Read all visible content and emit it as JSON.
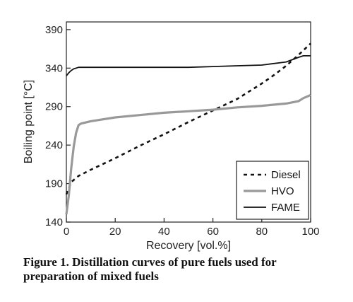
{
  "caption": "Figure 1. Distillation curves of pure fuels used for preparation of mixed fuels",
  "chart_data": {
    "type": "line",
    "title": "",
    "xlabel": "Recovery [vol.%]",
    "ylabel": "Boiling point [°C]",
    "xlim": [
      0,
      100
    ],
    "ylim": [
      140,
      400
    ],
    "xticks": [
      0,
      20,
      40,
      60,
      80,
      100
    ],
    "yticks": [
      140,
      190,
      240,
      290,
      340,
      390
    ],
    "grid": false,
    "legend": "bottom-right",
    "series": [
      {
        "name": "Diesel",
        "style": "dashed",
        "color": "#111111",
        "x": [
          0,
          2,
          5,
          10,
          20,
          30,
          40,
          50,
          60,
          70,
          80,
          85,
          90,
          95,
          100
        ],
        "y": [
          176,
          192,
          200,
          208,
          223,
          239,
          254,
          270,
          285,
          300,
          320,
          331,
          343,
          357,
          372
        ]
      },
      {
        "name": "HVO",
        "style": "solid-thick",
        "color": "#999999",
        "x": [
          0,
          1,
          2,
          3,
          4,
          5,
          6,
          10,
          20,
          30,
          40,
          50,
          60,
          70,
          80,
          90,
          95,
          97,
          100
        ],
        "y": [
          150,
          175,
          210,
          238,
          256,
          266,
          268,
          271,
          276,
          279,
          282,
          284,
          286,
          289,
          291,
          294,
          297,
          301,
          305
        ]
      },
      {
        "name": "FAME",
        "style": "solid",
        "color": "#111111",
        "x": [
          0,
          1,
          2,
          3,
          4,
          5,
          6,
          10,
          20,
          30,
          40,
          50,
          60,
          70,
          80,
          90,
          95,
          97,
          100
        ],
        "y": [
          330,
          334,
          337,
          339,
          340,
          341,
          341,
          341,
          341,
          341,
          341,
          341,
          342,
          343,
          344,
          348,
          354,
          356,
          356
        ]
      }
    ]
  }
}
